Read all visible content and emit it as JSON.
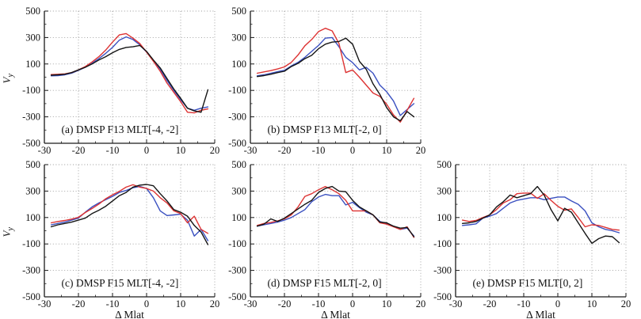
{
  "figure": {
    "description": "Five line subplots of cross-track ion drift Vy versus magnetic latitude offset for DMSP satellites",
    "colors": {
      "red": "#dd3333",
      "blue": "#3a50c0",
      "black": "#151515",
      "grid": "#9a9a9a",
      "axis": "#1a1a1a"
    }
  },
  "chart_data": [
    {
      "id": "a",
      "type": "line",
      "title": "(a) DMSP F13 MLT[-4, -2]",
      "xlabel": "Δ Mlat",
      "ylabel": {
        "base": "V",
        "sub": "y"
      },
      "show_xlabel": false,
      "show_ylabel": true,
      "xlim": [
        -30,
        20
      ],
      "ylim": [
        -500,
        500
      ],
      "x_ticks": [
        -30,
        -20,
        -10,
        0,
        10,
        20
      ],
      "y_ticks": [
        -500,
        -300,
        -100,
        100,
        300,
        500
      ],
      "grid": true,
      "x": [
        -28,
        -26,
        -24,
        -22,
        -20,
        -18,
        -16,
        -14,
        -12,
        -10,
        -8,
        -6,
        -4,
        -2,
        0,
        2,
        4,
        6,
        8,
        10,
        12,
        14,
        16,
        18
      ],
      "series": [
        {
          "name": "blue",
          "color": "#3a50c0",
          "values": [
            10,
            12,
            18,
            30,
            52,
            75,
            105,
            140,
            180,
            225,
            280,
            305,
            285,
            245,
            190,
            125,
            60,
            -25,
            -100,
            -170,
            -235,
            -250,
            -235,
            -225
          ]
        },
        {
          "name": "red",
          "color": "#dd3333",
          "values": [
            20,
            22,
            25,
            35,
            55,
            80,
            115,
            155,
            205,
            265,
            320,
            330,
            295,
            255,
            190,
            120,
            45,
            -45,
            -115,
            -185,
            -265,
            -270,
            -250,
            -240
          ]
        },
        {
          "name": "black",
          "color": "#151515",
          "values": [
            15,
            18,
            22,
            35,
            55,
            75,
            100,
            130,
            155,
            185,
            210,
            225,
            230,
            240,
            195,
            130,
            70,
            -10,
            -90,
            -160,
            -235,
            -255,
            -265,
            -95
          ]
        }
      ]
    },
    {
      "id": "b",
      "type": "line",
      "title": "(b) DMSP F13 MLT[-2, 0]",
      "xlabel": "Δ Mlat",
      "ylabel": {
        "base": "V",
        "sub": "y"
      },
      "show_xlabel": false,
      "show_ylabel": false,
      "xlim": [
        -30,
        20
      ],
      "ylim": [
        -500,
        500
      ],
      "x_ticks": [
        -30,
        -20,
        -10,
        0,
        10,
        20
      ],
      "y_ticks": [
        -500,
        -300,
        -100,
        100,
        300,
        500
      ],
      "grid": true,
      "x": [
        -28,
        -26,
        -24,
        -22,
        -20,
        -18,
        -16,
        -14,
        -12,
        -10,
        -8,
        -6,
        -4,
        -2,
        0,
        2,
        4,
        6,
        8,
        10,
        12,
        14,
        16,
        18
      ],
      "series": [
        {
          "name": "blue",
          "color": "#3a50c0",
          "values": [
            10,
            18,
            30,
            42,
            52,
            85,
            112,
            150,
            195,
            240,
            295,
            300,
            230,
            150,
            110,
            55,
            75,
            30,
            -60,
            -110,
            -180,
            -290,
            -245,
            -200
          ]
        },
        {
          "name": "red",
          "color": "#dd3333",
          "values": [
            30,
            40,
            50,
            62,
            78,
            112,
            168,
            238,
            285,
            345,
            370,
            350,
            255,
            35,
            55,
            0,
            -60,
            -120,
            -145,
            -205,
            -285,
            -340,
            -250,
            -160
          ]
        },
        {
          "name": "black",
          "color": "#151515",
          "values": [
            5,
            12,
            22,
            35,
            45,
            80,
            105,
            140,
            165,
            215,
            250,
            265,
            270,
            295,
            250,
            120,
            60,
            -50,
            -130,
            -230,
            -300,
            -330,
            -260,
            -300
          ]
        }
      ]
    },
    {
      "id": "c",
      "type": "line",
      "title": "(c) DMSP F15 MLT[-4, -2]",
      "xlabel": "Δ Mlat",
      "ylabel": {
        "base": "V",
        "sub": "y"
      },
      "show_xlabel": true,
      "show_ylabel": true,
      "xlim": [
        -30,
        20
      ],
      "ylim": [
        -500,
        500
      ],
      "x_ticks": [
        -30,
        -20,
        -10,
        0,
        10,
        20
      ],
      "y_ticks": [
        -500,
        -300,
        -100,
        100,
        300,
        500
      ],
      "grid": true,
      "x": [
        -28,
        -26,
        -24,
        -22,
        -20,
        -18,
        -16,
        -14,
        -12,
        -10,
        -8,
        -6,
        -4,
        -2,
        0,
        2,
        4,
        6,
        8,
        10,
        12,
        14,
        16,
        18
      ],
      "series": [
        {
          "name": "blue",
          "color": "#3a50c0",
          "values": [
            45,
            55,
            65,
            80,
            95,
            140,
            180,
            210,
            235,
            260,
            290,
            305,
            325,
            335,
            320,
            250,
            150,
            115,
            120,
            125,
            80,
            -40,
            10,
            -75
          ]
        },
        {
          "name": "red",
          "color": "#dd3333",
          "values": [
            60,
            70,
            78,
            88,
            102,
            138,
            168,
            202,
            242,
            272,
            298,
            330,
            348,
            330,
            320,
            300,
            250,
            210,
            150,
            130,
            60,
            110,
            10,
            -20
          ]
        },
        {
          "name": "black",
          "color": "#151515",
          "values": [
            30,
            45,
            55,
            65,
            80,
            95,
            130,
            155,
            185,
            225,
            265,
            290,
            330,
            345,
            350,
            340,
            280,
            225,
            160,
            140,
            110,
            40,
            -10,
            -105
          ]
        }
      ]
    },
    {
      "id": "d",
      "type": "line",
      "title": "(d) DMSP F15 MLT[-2, 0]",
      "xlabel": "Δ Mlat",
      "ylabel": {
        "base": "V",
        "sub": "y"
      },
      "show_xlabel": true,
      "show_ylabel": false,
      "xlim": [
        -30,
        20
      ],
      "ylim": [
        -500,
        500
      ],
      "x_ticks": [
        -30,
        -20,
        -10,
        0,
        10,
        20
      ],
      "y_ticks": [
        -500,
        -300,
        -100,
        100,
        300,
        500
      ],
      "grid": true,
      "x": [
        -28,
        -26,
        -24,
        -22,
        -20,
        -18,
        -16,
        -14,
        -12,
        -10,
        -8,
        -6,
        -4,
        -2,
        0,
        2,
        4,
        6,
        8,
        10,
        12,
        14,
        16,
        18
      ],
      "series": [
        {
          "name": "blue",
          "color": "#3a50c0",
          "values": [
            35,
            45,
            55,
            65,
            80,
            100,
            130,
            160,
            220,
            255,
            275,
            265,
            265,
            195,
            215,
            175,
            140,
            120,
            70,
            55,
            35,
            10,
            20,
            -40
          ]
        },
        {
          "name": "red",
          "color": "#dd3333",
          "values": [
            40,
            55,
            62,
            75,
            90,
            120,
            180,
            260,
            280,
            310,
            335,
            310,
            280,
            230,
            150,
            150,
            150,
            120,
            60,
            50,
            30,
            10,
            30,
            -50
          ]
        },
        {
          "name": "black",
          "color": "#151515",
          "values": [
            35,
            50,
            90,
            70,
            95,
            130,
            165,
            200,
            230,
            290,
            320,
            335,
            300,
            295,
            230,
            180,
            150,
            120,
            65,
            60,
            35,
            20,
            25,
            -45
          ]
        }
      ]
    },
    {
      "id": "e",
      "type": "line",
      "title": "(e) DMSP F15 MLT[0, 2]",
      "xlabel": "Δ Mlat",
      "ylabel": {
        "base": "V",
        "sub": "y"
      },
      "show_xlabel": true,
      "show_ylabel": false,
      "xlim": [
        -30,
        20
      ],
      "ylim": [
        -500,
        500
      ],
      "x_ticks": [
        -30,
        -20,
        -10,
        0,
        10,
        20
      ],
      "y_ticks": [
        -500,
        -300,
        -100,
        100,
        300,
        500
      ],
      "grid": true,
      "x": [
        -28,
        -26,
        -24,
        -22,
        -20,
        -18,
        -16,
        -14,
        -12,
        -10,
        -8,
        -6,
        -4,
        -2,
        0,
        2,
        4,
        6,
        8,
        10,
        12,
        14,
        16,
        18
      ],
      "series": [
        {
          "name": "blue",
          "color": "#3a50c0",
          "values": [
            40,
            45,
            52,
            95,
            110,
            130,
            170,
            210,
            230,
            240,
            250,
            250,
            235,
            245,
            255,
            255,
            225,
            200,
            150,
            60,
            30,
            10,
            0,
            -15
          ]
        },
        {
          "name": "red",
          "color": "#dd3333",
          "values": [
            80,
            70,
            78,
            100,
            120,
            160,
            210,
            235,
            280,
            285,
            285,
            245,
            280,
            230,
            185,
            155,
            165,
            100,
            30,
            45,
            40,
            25,
            10,
            5
          ]
        },
        {
          "name": "black",
          "color": "#151515",
          "values": [
            55,
            60,
            70,
            95,
            120,
            180,
            220,
            270,
            250,
            265,
            280,
            335,
            270,
            160,
            75,
            170,
            140,
            60,
            -20,
            -95,
            -60,
            -40,
            -45,
            -90
          ]
        }
      ]
    }
  ]
}
